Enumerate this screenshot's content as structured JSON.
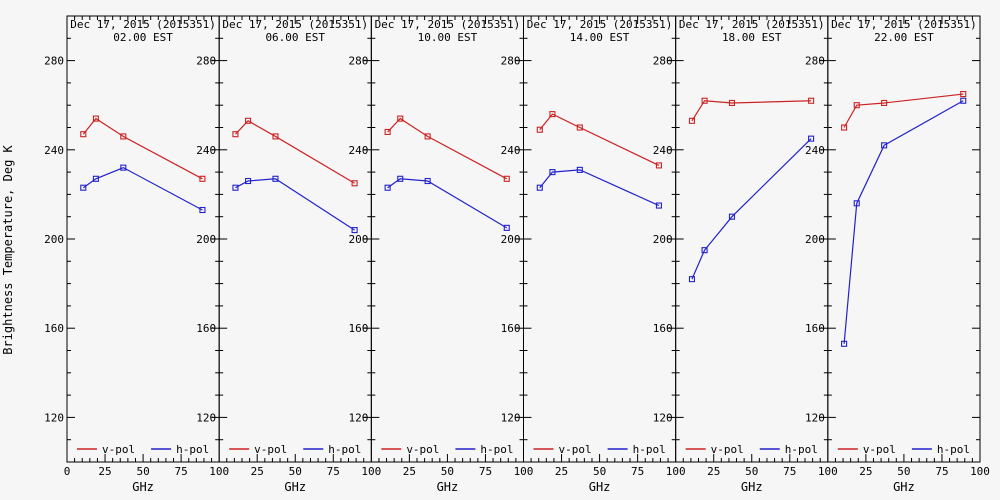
{
  "figure": {
    "background": "#f6f6f6",
    "axis_color": "#000000"
  },
  "chart_data": {
    "type": "line",
    "ylabel": "Brightness Temperature, Deg K",
    "xlabel": "GHz",
    "x": [
      10.7,
      19,
      37,
      89
    ],
    "x_range": [
      0,
      100
    ],
    "x_ticks": [
      0,
      25,
      50,
      75,
      100
    ],
    "x_minor_step": 5,
    "y_range": [
      100,
      300
    ],
    "y_ticks": [
      120,
      160,
      200,
      240,
      280
    ],
    "y_minor_step": 10,
    "legend": [
      {
        "label": "v-pol",
        "color": "#cc2222"
      },
      {
        "label": "h-pol",
        "color": "#2222cc"
      }
    ],
    "panels": [
      {
        "title": "Dec 17, 2015 (2015351)",
        "subtitle": "02.00 EST",
        "series": [
          {
            "name": "v-pol",
            "color": "#cc2222",
            "values": [
              247,
              254,
              246,
              227
            ]
          },
          {
            "name": "h-pol",
            "color": "#2222cc",
            "values": [
              223,
              227,
              232,
              213
            ]
          }
        ]
      },
      {
        "title": "Dec 17, 2015 (2015351)",
        "subtitle": "06.00 EST",
        "series": [
          {
            "name": "v-pol",
            "color": "#cc2222",
            "values": [
              247,
              253,
              246,
              225
            ]
          },
          {
            "name": "h-pol",
            "color": "#2222cc",
            "values": [
              223,
              226,
              227,
              204
            ]
          }
        ]
      },
      {
        "title": "Dec 17, 2015 (2015351)",
        "subtitle": "10.00 EST",
        "series": [
          {
            "name": "v-pol",
            "color": "#cc2222",
            "values": [
              248,
              254,
              246,
              227
            ]
          },
          {
            "name": "h-pol",
            "color": "#2222cc",
            "values": [
              223,
              227,
              226,
              205
            ]
          }
        ]
      },
      {
        "title": "Dec 17, 2015 (2015351)",
        "subtitle": "14.00 EST",
        "series": [
          {
            "name": "v-pol",
            "color": "#cc2222",
            "values": [
              249,
              256,
              250,
              233
            ]
          },
          {
            "name": "h-pol",
            "color": "#2222cc",
            "values": [
              223,
              230,
              231,
              215
            ]
          }
        ]
      },
      {
        "title": "Dec 17, 2015 (2015351)",
        "subtitle": "18.00 EST",
        "series": [
          {
            "name": "v-pol",
            "color": "#cc2222",
            "values": [
              253,
              262,
              261,
              262
            ]
          },
          {
            "name": "h-pol",
            "color": "#2222cc",
            "values": [
              182,
              195,
              210,
              245
            ]
          }
        ]
      },
      {
        "title": "Dec 17, 2015 (2015351)",
        "subtitle": "22.00 EST",
        "series": [
          {
            "name": "v-pol",
            "color": "#cc2222",
            "values": [
              250,
              260,
              261,
              265
            ]
          },
          {
            "name": "h-pol",
            "color": "#2222cc",
            "values": [
              153,
              216,
              242,
              262
            ]
          }
        ]
      }
    ]
  }
}
